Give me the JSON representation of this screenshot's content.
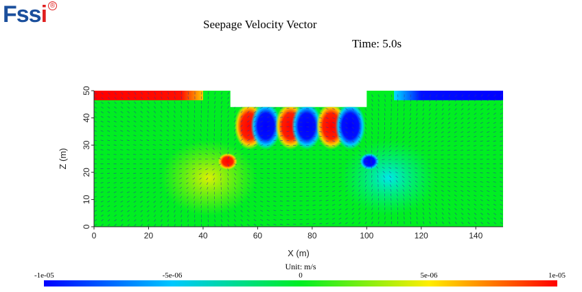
{
  "logo": {
    "text_main": "Fss",
    "text_accent": "i",
    "mark": "®"
  },
  "header": {
    "title": "Seepage Velocity Vector",
    "time": "Time: 5.0s"
  },
  "colorbar": {
    "unit": "Unit: m/s",
    "min": -1e-05,
    "max": 1e-05,
    "ticks": [
      "-1e-05",
      "-5e-06",
      "0",
      "5e-06",
      "1e-05"
    ]
  },
  "colors": {
    "strong_negative": "#0000ff",
    "negative": "#00e0ff",
    "neutral": "#00ee22",
    "positive": "#ffee00",
    "strong_positive": "#ff0000",
    "vectors": "#2c3a9a"
  },
  "chart_data": {
    "type": "heatmap",
    "title": "Seepage Velocity Vector",
    "annotation": "Time: 5.0s",
    "xlabel": "X (m)",
    "ylabel": "Z (m)",
    "xlim": [
      0,
      150
    ],
    "ylim": [
      0,
      50
    ],
    "xticks": [
      0,
      20,
      40,
      60,
      80,
      100,
      120,
      140
    ],
    "yticks": [
      0,
      10,
      20,
      30,
      40,
      50
    ],
    "field": "seepage velocity",
    "unit": "m/s",
    "color_range": [
      -1e-05,
      1e-05
    ],
    "domain_outline": [
      [
        0,
        0
      ],
      [
        0,
        50
      ],
      [
        50,
        50
      ],
      [
        50,
        44
      ],
      [
        100,
        44
      ],
      [
        100,
        50
      ],
      [
        150,
        50
      ],
      [
        150,
        0
      ]
    ],
    "hotspots": [
      {
        "x": 49,
        "z": 24,
        "value": 1e-05
      },
      {
        "x": 101,
        "z": 24,
        "value": -1e-05
      },
      {
        "x": 57,
        "z": 37,
        "value": 1e-05
      },
      {
        "x": 63,
        "z": 37,
        "value": -1e-05
      },
      {
        "x": 72,
        "z": 37,
        "value": 1e-05
      },
      {
        "x": 78,
        "z": 37,
        "value": -1e-05
      },
      {
        "x": 87,
        "z": 37,
        "value": 1e-05
      },
      {
        "x": 94,
        "z": 37,
        "value": -1e-05
      },
      {
        "x": 20,
        "z": 48,
        "value": 1e-05
      },
      {
        "x": 130,
        "z": 48,
        "value": -1e-05
      }
    ]
  }
}
